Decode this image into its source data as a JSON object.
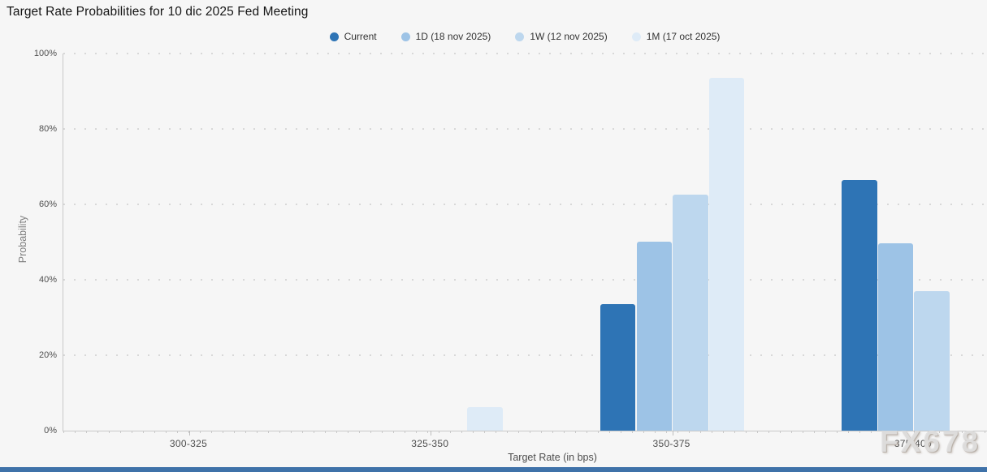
{
  "page": {
    "watermark": "FX678"
  },
  "chart_data": {
    "type": "bar",
    "title": "Target Rate Probabilities for 10 dic 2025 Fed Meeting",
    "xlabel": "Target Rate (in bps)",
    "ylabel": "Probability",
    "categories": [
      "300-325",
      "325-350",
      "350-375",
      "375-400"
    ],
    "series": [
      {
        "name": "Current",
        "color": "#2e74b5",
        "values": [
          0,
          0,
          33.5,
          66.5
        ]
      },
      {
        "name": "1D (18 nov 2025)",
        "color": "#9dc3e6",
        "values": [
          0,
          0,
          50.1,
          49.7
        ]
      },
      {
        "name": "1W (12 nov 2025)",
        "color": "#bdd7ee",
        "values": [
          0,
          0,
          62.6,
          36.9
        ]
      },
      {
        "name": "1M (17 oct 2025)",
        "color": "#deebf7",
        "values": [
          0,
          6.2,
          93.6,
          0
        ]
      }
    ],
    "ylim": [
      0,
      100
    ],
    "ytick_step": 20,
    "ytick_labels": [
      "0%",
      "20%",
      "40%",
      "60%",
      "80%",
      "100%"
    ],
    "grid": "horizontal-dotted",
    "legend_position": "top-center"
  },
  "colors": {
    "background": "#f6f6f6",
    "axis_line": "#c9c9c9",
    "gridline": "#d8d8d8",
    "footer_bar": "#3f72a9"
  }
}
